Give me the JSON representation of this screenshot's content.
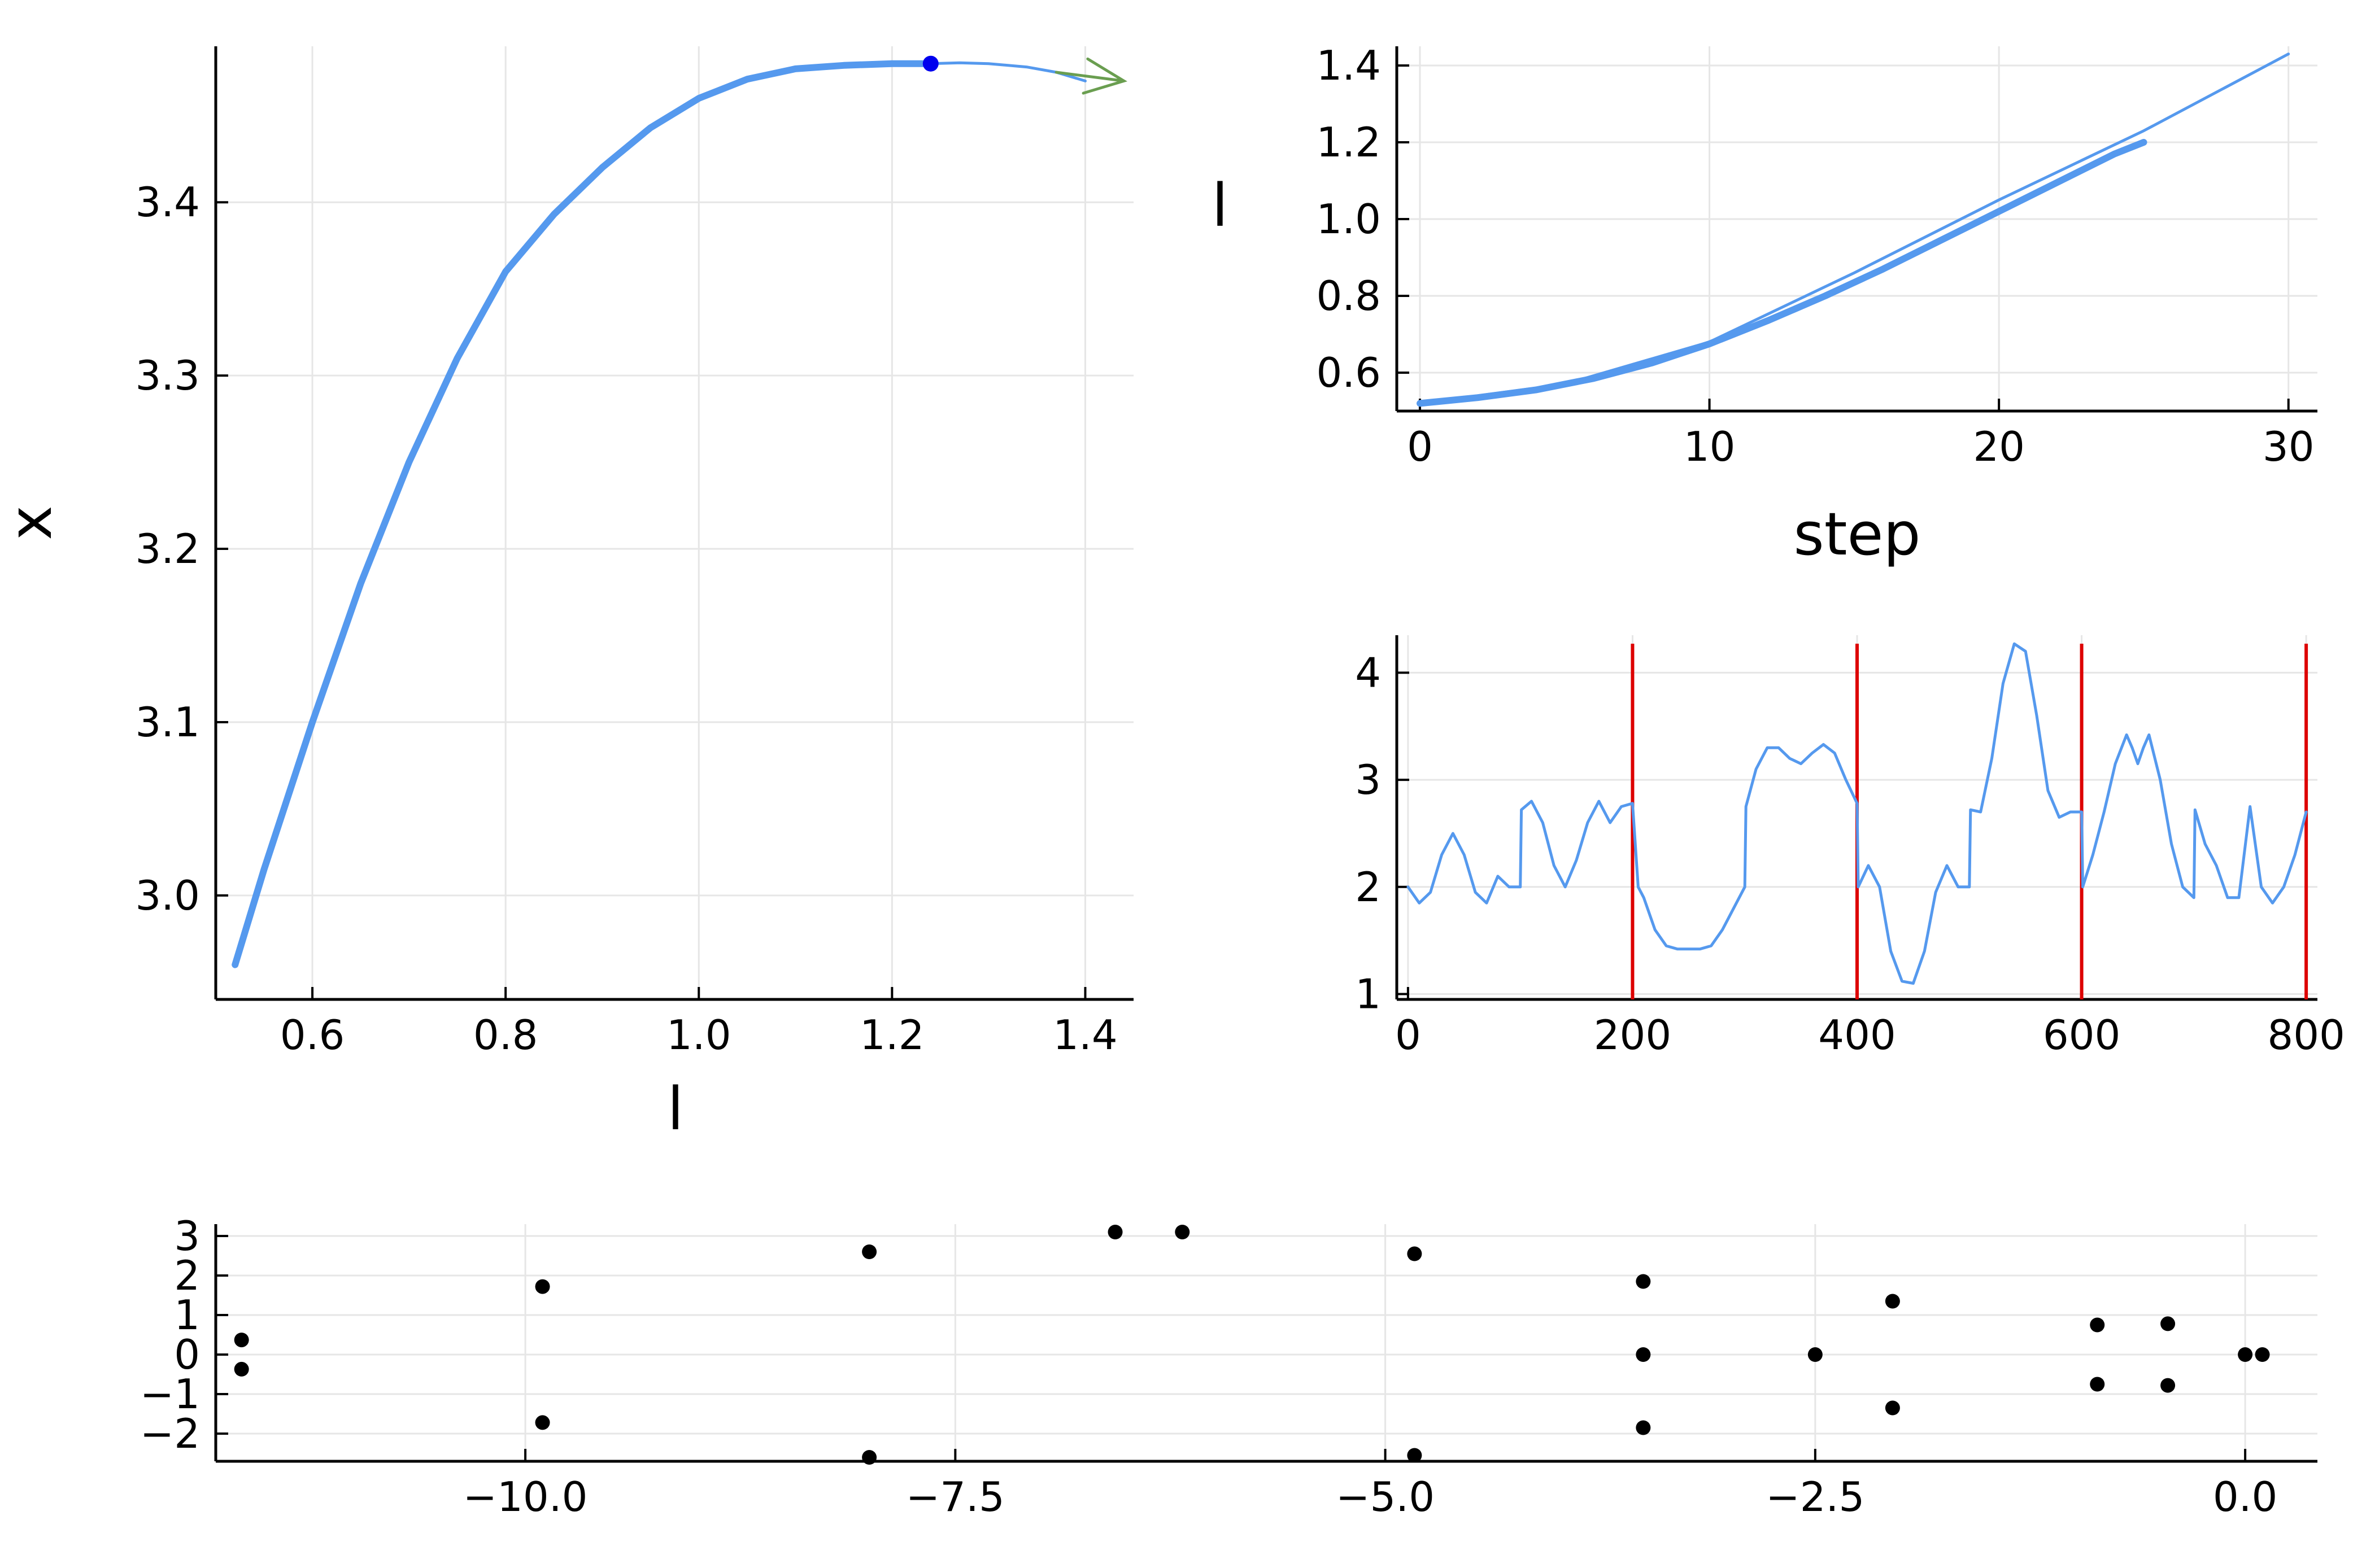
{
  "colors": {
    "series": "#5599ee",
    "marker": "#0000ee",
    "arrow": "#6a9e50",
    "vline": "#dd0000",
    "points": "#000000",
    "grid": "#e6e6e6",
    "axis": "#000000"
  },
  "chart_data": [
    {
      "id": "bifurcation",
      "type": "line",
      "xlabel": "l",
      "ylabel": "x",
      "xlim": [
        0.5,
        1.45
      ],
      "ylim": [
        2.94,
        3.49
      ],
      "xticks": [
        0.6,
        0.8,
        1.0,
        1.2,
        1.4
      ],
      "xtick_labels": [
        "0.6",
        "0.8",
        "1.0",
        "1.2",
        "1.4"
      ],
      "yticks": [
        3.0,
        3.1,
        3.2,
        3.3,
        3.4
      ],
      "ytick_labels": [
        "3.0",
        "3.1",
        "3.2",
        "3.3",
        "3.4"
      ],
      "grid": true,
      "series": [
        {
          "style": "thick",
          "x": [
            0.52,
            0.55,
            0.6,
            0.65,
            0.7,
            0.75,
            0.8,
            0.85,
            0.9,
            0.95,
            1.0,
            1.05,
            1.1,
            1.15,
            1.2,
            1.24
          ],
          "y": [
            2.96,
            3.015,
            3.1,
            3.18,
            3.25,
            3.31,
            3.36,
            3.393,
            3.42,
            3.443,
            3.46,
            3.471,
            3.477,
            3.479,
            3.48,
            3.48
          ]
        },
        {
          "style": "thin",
          "x": [
            1.24,
            1.27,
            1.3,
            1.34,
            1.37,
            1.4
          ],
          "y": [
            3.48,
            3.4805,
            3.48,
            3.478,
            3.475,
            3.47
          ]
        }
      ],
      "marker": {
        "x": 1.24,
        "y": 3.48
      },
      "arrow": {
        "from": [
          1.37,
          3.475
        ],
        "to": [
          1.44,
          3.47
        ]
      }
    },
    {
      "id": "continuation-steps",
      "type": "line",
      "xlabel": "step",
      "ylabel": "l",
      "xlim": [
        -0.8,
        31
      ],
      "ylim": [
        0.5,
        1.45
      ],
      "xticks": [
        0,
        10,
        20,
        30
      ],
      "xtick_labels": [
        "0",
        "10",
        "20",
        "30"
      ],
      "yticks": [
        0.6,
        0.8,
        1.0,
        1.2,
        1.4
      ],
      "ytick_labels": [
        "0.6",
        "0.8",
        "1.0",
        "1.2",
        "1.4"
      ],
      "grid": true,
      "series": [
        {
          "style": "thick",
          "x": [
            0,
            2,
            4,
            6,
            8,
            10,
            12,
            14,
            16,
            18,
            20,
            22,
            24,
            25
          ],
          "y": [
            0.52,
            0.535,
            0.555,
            0.585,
            0.625,
            0.675,
            0.735,
            0.8,
            0.87,
            0.945,
            1.02,
            1.095,
            1.17,
            1.2
          ]
        },
        {
          "style": "thin",
          "x": [
            0,
            5,
            10,
            15,
            20,
            25,
            30
          ],
          "y": [
            0.52,
            0.57,
            0.68,
            0.86,
            1.05,
            1.23,
            1.43
          ]
        }
      ]
    },
    {
      "id": "solution-profile",
      "type": "line",
      "xlabel": "",
      "ylabel": "",
      "xlim": [
        -10,
        810
      ],
      "ylim": [
        0.95,
        4.35
      ],
      "xticks": [
        0,
        200,
        400,
        600,
        800
      ],
      "xtick_labels": [
        "0",
        "200",
        "400",
        "600",
        "800"
      ],
      "yticks": [
        1,
        2,
        3,
        4
      ],
      "ytick_labels": [
        "1",
        "2",
        "3",
        "4"
      ],
      "grid": true,
      "vlines": [
        200,
        400,
        600,
        800
      ],
      "series": [
        {
          "style": "thin",
          "x": [
            0,
            10,
            20,
            30,
            40,
            50,
            60,
            70,
            80,
            90,
            100,
            101,
            110,
            120,
            130,
            140,
            150,
            160,
            170,
            180,
            190,
            200,
            205,
            210,
            220,
            230,
            240,
            250,
            260,
            270,
            280,
            290,
            300,
            301,
            310,
            320,
            330,
            340,
            350,
            360,
            370,
            380,
            390,
            400,
            401,
            410,
            420,
            430,
            440,
            450,
            460,
            470,
            480,
            490,
            500,
            501,
            510,
            520,
            530,
            540,
            550,
            560,
            570,
            580,
            590,
            600,
            601,
            610,
            620,
            630,
            640,
            645,
            650,
            655,
            660,
            670,
            680,
            690,
            700,
            701,
            710,
            720,
            730,
            740,
            750,
            760,
            770,
            780,
            790,
            800
          ],
          "y": [
            2.0,
            1.85,
            1.95,
            2.3,
            2.5,
            2.3,
            1.95,
            1.85,
            2.1,
            2.0,
            2.0,
            2.72,
            2.8,
            2.6,
            2.2,
            2.0,
            2.25,
            2.6,
            2.8,
            2.6,
            2.75,
            2.78,
            2.0,
            1.9,
            1.6,
            1.45,
            1.42,
            1.42,
            1.42,
            1.45,
            1.6,
            1.8,
            2.0,
            2.75,
            3.1,
            3.3,
            3.3,
            3.2,
            3.15,
            3.25,
            3.33,
            3.25,
            3.0,
            2.78,
            2.0,
            2.2,
            2.0,
            1.4,
            1.12,
            1.1,
            1.4,
            1.95,
            2.2,
            2.0,
            2.0,
            2.72,
            2.7,
            3.2,
            3.9,
            4.27,
            4.2,
            3.6,
            2.9,
            2.65,
            2.7,
            2.7,
            2.0,
            2.3,
            2.7,
            3.15,
            3.42,
            3.3,
            3.15,
            3.3,
            3.42,
            3.0,
            2.4,
            2.0,
            1.9,
            2.72,
            2.4,
            2.2,
            1.9,
            1.9,
            2.75,
            2.0,
            1.85,
            2.0,
            2.3,
            2.7
          ]
        }
      ]
    },
    {
      "id": "eigenvalues",
      "type": "scatter",
      "xlabel": "",
      "ylabel": "",
      "xlim": [
        -11.8,
        0.42
      ],
      "ylim": [
        -2.7,
        3.3
      ],
      "xticks": [
        -10.0,
        -7.5,
        -5.0,
        -2.5,
        0.0
      ],
      "xtick_labels": [
        "−10.0",
        "−7.5",
        "−5.0",
        "−2.5",
        "0.0"
      ],
      "yticks": [
        -2,
        -1,
        0,
        1,
        2,
        3
      ],
      "ytick_labels": [
        "−2",
        "−1",
        "0",
        "1",
        "2",
        "3"
      ],
      "grid": true,
      "points": {
        "x": [
          -11.65,
          -11.65,
          -9.9,
          -9.9,
          -8.0,
          -8.0,
          -6.57,
          -6.18,
          -4.83,
          -4.83,
          -3.5,
          -3.5,
          -3.5,
          -2.5,
          -2.05,
          -2.05,
          -0.86,
          -0.86,
          -0.45,
          -0.45,
          0.0,
          0.1
        ],
        "y": [
          0.37,
          -0.37,
          1.72,
          -1.72,
          2.6,
          -2.6,
          3.1,
          3.1,
          2.55,
          -2.55,
          1.85,
          0.0,
          -1.85,
          0.0,
          1.35,
          -1.35,
          0.75,
          -0.75,
          0.78,
          -0.78,
          0.0,
          0.0
        ]
      }
    }
  ]
}
